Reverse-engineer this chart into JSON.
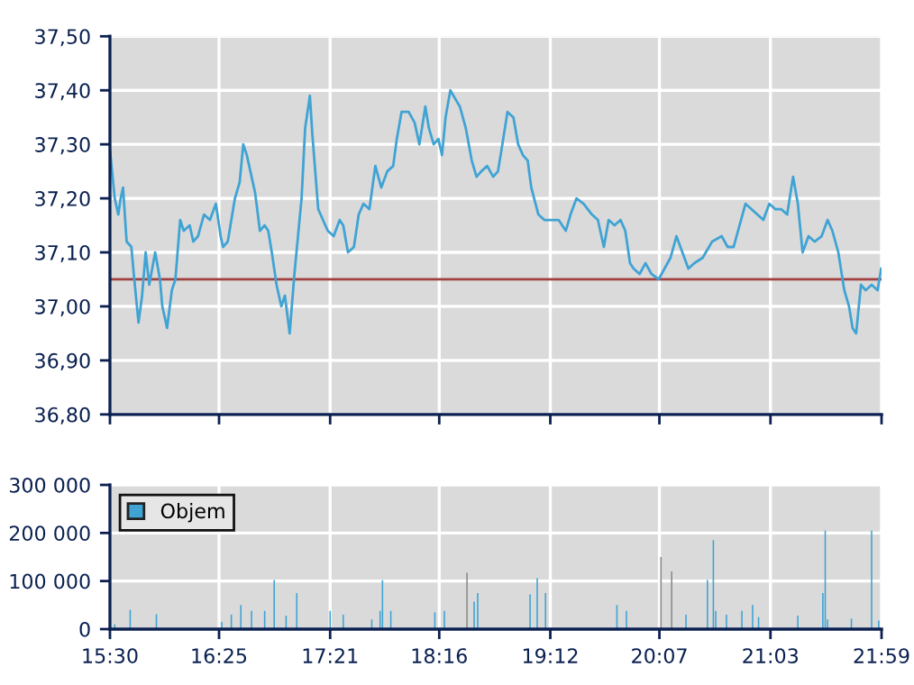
{
  "chart_data": [
    {
      "type": "line",
      "x": [
        15.5,
        15.54,
        15.57,
        15.59,
        15.61,
        15.64,
        15.68,
        15.7,
        15.74,
        15.77,
        15.8,
        15.83,
        15.88,
        15.92,
        15.94,
        15.98,
        16.02,
        16.05,
        16.09,
        16.12,
        16.17,
        16.2,
        16.24,
        16.29,
        16.34,
        16.39,
        16.43,
        16.45,
        16.49,
        16.55,
        16.59,
        16.62,
        16.65,
        16.69,
        16.72,
        16.76,
        16.8,
        16.83,
        16.86,
        16.9,
        16.94,
        16.97,
        17.01,
        17.05,
        17.08,
        17.11,
        17.14,
        17.18,
        17.2,
        17.25,
        17.29,
        17.33,
        17.38,
        17.43,
        17.46,
        17.5,
        17.55,
        17.59,
        17.63,
        17.68,
        17.73,
        17.78,
        17.83,
        17.88,
        17.91,
        17.95,
        18.01,
        18.06,
        18.1,
        18.15,
        18.18,
        18.22,
        18.26,
        18.29,
        18.32,
        18.36,
        18.44,
        18.49,
        18.54,
        18.58,
        18.62,
        18.67,
        18.72,
        18.76,
        18.79,
        18.84,
        18.89,
        18.93,
        18.97,
        19.01,
        19.04,
        19.1,
        19.15,
        19.2,
        19.27,
        19.33,
        19.37,
        19.42,
        19.48,
        19.55,
        19.6,
        19.65,
        19.69,
        19.74,
        19.79,
        19.83,
        19.87,
        19.9,
        19.95,
        20.0,
        20.05,
        20.11,
        20.16,
        20.21,
        20.26,
        20.31,
        20.36,
        20.41,
        20.48,
        20.56,
        20.64,
        20.69,
        20.74,
        20.79,
        20.84,
        20.89,
        20.94,
        20.99,
        21.04,
        21.09,
        21.14,
        21.19,
        21.24,
        21.28,
        21.32,
        21.37,
        21.42,
        21.48,
        21.53,
        21.57,
        21.62,
        21.67,
        21.71,
        21.74,
        21.77,
        21.81,
        21.85,
        21.9,
        21.95,
        21.98
      ],
      "series": [
        {
          "color": "#3fa3d4",
          "values": [
            37.29,
            37.2,
            37.17,
            37.2,
            37.22,
            37.12,
            37.11,
            37.06,
            36.97,
            37.02,
            37.1,
            37.04,
            37.1,
            37.05,
            37.0,
            36.96,
            37.03,
            37.05,
            37.16,
            37.14,
            37.15,
            37.12,
            37.13,
            37.17,
            37.16,
            37.19,
            37.13,
            37.11,
            37.12,
            37.2,
            37.23,
            37.3,
            37.28,
            37.24,
            37.21,
            37.14,
            37.15,
            37.14,
            37.1,
            37.04,
            37.0,
            37.02,
            36.95,
            37.06,
            37.13,
            37.2,
            37.33,
            37.39,
            37.32,
            37.18,
            37.16,
            37.14,
            37.13,
            37.16,
            37.15,
            37.1,
            37.11,
            37.17,
            37.19,
            37.18,
            37.26,
            37.22,
            37.25,
            37.26,
            37.31,
            37.36,
            37.36,
            37.34,
            37.3,
            37.37,
            37.33,
            37.3,
            37.31,
            37.28,
            37.35,
            37.4,
            37.37,
            37.33,
            37.27,
            37.24,
            37.25,
            37.26,
            37.24,
            37.25,
            37.29,
            37.36,
            37.35,
            37.3,
            37.28,
            37.27,
            37.22,
            37.17,
            37.16,
            37.16,
            37.16,
            37.14,
            37.17,
            37.2,
            37.19,
            37.17,
            37.16,
            37.11,
            37.16,
            37.15,
            37.16,
            37.14,
            37.08,
            37.07,
            37.06,
            37.08,
            37.06,
            37.05,
            37.07,
            37.09,
            37.13,
            37.1,
            37.07,
            37.08,
            37.09,
            37.12,
            37.13,
            37.11,
            37.11,
            37.15,
            37.19,
            37.18,
            37.17,
            37.16,
            37.19,
            37.18,
            37.18,
            37.17,
            37.24,
            37.19,
            37.1,
            37.13,
            37.12,
            37.13,
            37.16,
            37.14,
            37.1,
            37.03,
            37.0,
            36.96,
            36.95,
            37.04,
            37.03,
            37.04,
            37.03,
            37.07
          ]
        }
      ],
      "xlim": [
        15.5,
        21.9833
      ],
      "xticks": [
        {
          "value": 15.5,
          "label": null
        },
        {
          "value": 16.4167,
          "label": null
        },
        {
          "value": 17.35,
          "label": null
        },
        {
          "value": 18.2667,
          "label": null
        },
        {
          "value": 19.2,
          "label": null
        },
        {
          "value": 20.1167,
          "label": null
        },
        {
          "value": 21.05,
          "label": null
        },
        {
          "value": 21.9833,
          "label": null
        }
      ],
      "ylim": [
        36.8,
        37.5
      ],
      "yticks": [
        {
          "value": 36.8,
          "label": "36,80"
        },
        {
          "value": 36.9,
          "label": "36,90"
        },
        {
          "value": 37.0,
          "label": "37,00"
        },
        {
          "value": 37.1,
          "label": "37,10"
        },
        {
          "value": 37.2,
          "label": "37,20"
        },
        {
          "value": 37.3,
          "label": "37,30"
        },
        {
          "value": 37.4,
          "label": "37,40"
        },
        {
          "value": 37.5,
          "label": "37,50"
        }
      ],
      "ref_lines": [
        {
          "axis": "y",
          "value": 37.05,
          "color": "#a04040"
        }
      ],
      "grid": true,
      "tick_labels": "y",
      "marker": "none",
      "line_style": "solid"
    },
    {
      "type": "bar",
      "x": [
        15.54,
        15.67,
        15.89,
        16.44,
        16.52,
        16.6,
        16.69,
        16.8,
        16.88,
        16.98,
        17.07,
        17.35,
        17.46,
        17.7,
        17.77,
        17.79,
        17.86,
        18.23,
        18.31,
        18.5,
        18.56,
        18.59,
        19.03,
        19.09,
        19.16,
        19.76,
        19.84,
        20.13,
        20.22,
        20.34,
        20.52,
        20.57,
        20.59,
        20.68,
        20.81,
        20.9,
        20.95,
        21.28,
        21.49,
        21.51,
        21.53,
        21.73,
        21.9,
        21.96
      ],
      "series": [
        {
          "name": "Objem",
          "color": "#3fa3d4",
          "values": [
            10000,
            40000,
            31000,
            15000,
            30000,
            50000,
            38000,
            38000,
            102000,
            28000,
            75000,
            38000,
            30000,
            20000,
            38000,
            102000,
            38000,
            35000,
            38000,
            117000,
            57000,
            75000,
            72000,
            106000,
            75000,
            50000,
            38000,
            150000,
            120000,
            30000,
            102000,
            185000,
            38000,
            30000,
            38000,
            50000,
            25000,
            28000,
            75000,
            205000,
            20000,
            22000,
            205000,
            18000
          ],
          "colors": [
            "#3fa3d4",
            "#3fa3d4",
            "#3fa3d4",
            "#3fa3d4",
            "#3fa3d4",
            "#3fa3d4",
            "#3fa3d4",
            "#3fa3d4",
            "#3fa3d4",
            "#3fa3d4",
            "#3fa3d4",
            "#3fa3d4",
            "#3fa3d4",
            "#3fa3d4",
            "#3fa3d4",
            "#3fa3d4",
            "#3fa3d4",
            "#3fa3d4",
            "#3fa3d4",
            "#8a8a8a",
            "#3fa3d4",
            "#3fa3d4",
            "#3fa3d4",
            "#3fa3d4",
            "#3fa3d4",
            "#3fa3d4",
            "#3fa3d4",
            "#8a8a8a",
            "#8a8a8a",
            "#3fa3d4",
            "#3fa3d4",
            "#3fa3d4",
            "#3fa3d4",
            "#3fa3d4",
            "#3fa3d4",
            "#3fa3d4",
            "#3fa3d4",
            "#3fa3d4",
            "#3fa3d4",
            "#3fa3d4",
            "#3fa3d4",
            "#3fa3d4",
            "#3fa3d4",
            "#3fa3d4"
          ]
        }
      ],
      "xlim": [
        15.5,
        21.9833
      ],
      "xticks": [
        {
          "value": 15.5,
          "label": "15:30"
        },
        {
          "value": 16.4167,
          "label": "16:25"
        },
        {
          "value": 17.35,
          "label": "17:21"
        },
        {
          "value": 18.2667,
          "label": "18:16"
        },
        {
          "value": 19.2,
          "label": "19:12"
        },
        {
          "value": 20.1167,
          "label": "20:07"
        },
        {
          "value": 21.05,
          "label": "21:03"
        },
        {
          "value": 21.9833,
          "label": "21:59"
        }
      ],
      "ylim": [
        0,
        300000
      ],
      "yticks": [
        {
          "value": 0,
          "label": "0"
        },
        {
          "value": 100000,
          "label": "100 000"
        },
        {
          "value": 200000,
          "label": "200 000"
        },
        {
          "value": 300000,
          "label": "300 000"
        }
      ],
      "grid": true,
      "legend": "top left"
    }
  ]
}
